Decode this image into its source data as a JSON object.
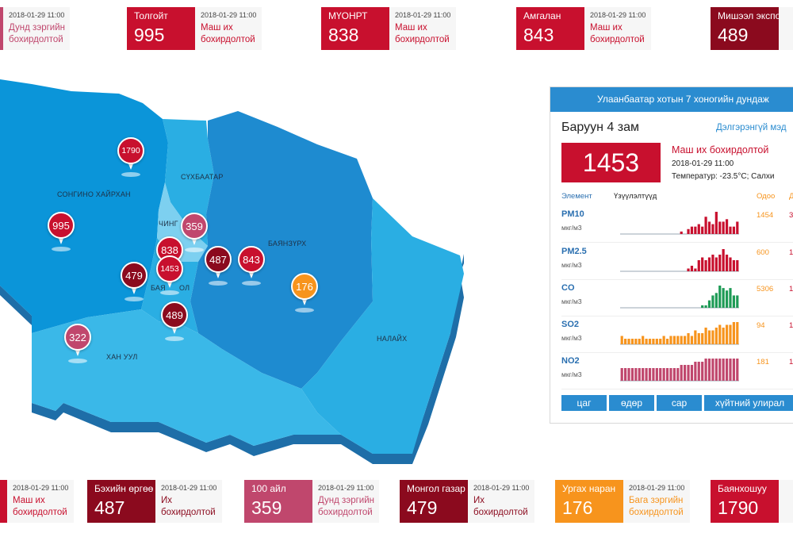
{
  "colors": {
    "very_high": "#c8102e",
    "dark": "#8b0a1e",
    "medium": "#c0476d",
    "low": "#f7941d",
    "map_dark": "#0b95d9",
    "map_mid": "#2aaee3",
    "map_light": "#7dd0f0",
    "map_side": "#1e6ea8",
    "accent": "#2a8cd0"
  },
  "top_cards": [
    {
      "name": "",
      "value": "",
      "timestamp": "2018-01-29 11:00",
      "status": "Дунд зэргийн бохирдолтой",
      "color": "#c0476d"
    },
    {
      "name": "Толгойт",
      "value": "995",
      "timestamp": "2018-01-29 11:00",
      "status": "Маш их бохирдолтой",
      "color": "#c8102e"
    },
    {
      "name": "МҮОНРТ",
      "value": "838",
      "timestamp": "2018-01-29 11:00",
      "status": "Маш их бохирдолтой",
      "color": "#c8102e"
    },
    {
      "name": "Амгалан",
      "value": "843",
      "timestamp": "2018-01-29 11:00",
      "status": "Маш их бохирдолтой",
      "color": "#c8102e"
    },
    {
      "name": "Мишээл экспо",
      "value": "489",
      "timestamp": "",
      "status": "",
      "color": "#8b0a1e"
    }
  ],
  "bottom_cards": [
    {
      "name": "",
      "value": "",
      "timestamp": "2018-01-29 11:00",
      "status": "Маш их бохирдолтой",
      "color": "#c8102e"
    },
    {
      "name": "Бэхийн өргөө",
      "value": "487",
      "timestamp": "2018-01-29 11:00",
      "status": "Их бохирдолтой",
      "color": "#8b0a1e"
    },
    {
      "name": "100 айл",
      "value": "359",
      "timestamp": "2018-01-29 11:00",
      "status": "Дунд зэргийн бохирдолтой",
      "color": "#c0476d"
    },
    {
      "name": "Монгол газар",
      "value": "479",
      "timestamp": "2018-01-29 11:00",
      "status": "Их бохирдолтой",
      "color": "#8b0a1e"
    },
    {
      "name": "Ургах наран",
      "value": "176",
      "timestamp": "2018-01-29 11:00",
      "status": "Бага зэргийн бохирдолтой",
      "color": "#f7941d"
    },
    {
      "name": "Баянхошуу",
      "value": "1790",
      "timestamp": "",
      "status": "",
      "color": "#c8102e"
    }
  ],
  "map": {
    "districts": [
      "СОНГИНО ХАЙРХАН",
      "СҮХБААТАР",
      "ЧИНГ",
      "БАЯНЗҮРХ",
      "БАЯ",
      "ОЛ",
      "ХАН УУЛ",
      "НАЛАЙХ"
    ],
    "markers": [
      {
        "value": "1790",
        "color": "#c8102e",
        "size": "small"
      },
      {
        "value": "995",
        "color": "#c8102e",
        "size": "normal"
      },
      {
        "value": "359",
        "color": "#c0476d",
        "size": "normal"
      },
      {
        "value": "838",
        "color": "#c8102e",
        "size": "normal"
      },
      {
        "value": "1453",
        "color": "#c8102e",
        "size": "small"
      },
      {
        "value": "479",
        "color": "#8b0a1e",
        "size": "normal"
      },
      {
        "value": "487",
        "color": "#8b0a1e",
        "size": "normal"
      },
      {
        "value": "843",
        "color": "#c8102e",
        "size": "normal"
      },
      {
        "value": "176",
        "color": "#f7941d",
        "size": "normal"
      },
      {
        "value": "489",
        "color": "#8b0a1e",
        "size": "normal"
      },
      {
        "value": "322",
        "color": "#c0476d",
        "size": "normal"
      }
    ]
  },
  "panel": {
    "title": "Улаанбаатар хотын 7 хоногийн дундаж",
    "station": "Баруун 4 зам",
    "details_link": "Дэлгэрэнгүй мэд",
    "value": "1453",
    "status": "Маш их бохирдолтой",
    "timestamp": "2018-01-29 11:00",
    "weather": "Температур: -23.5°C; Салхи",
    "col_element": "Элемент",
    "col_indicators": "Үзүүлэлтүүд",
    "col_now": "Одоо",
    "col_extra": "Д",
    "rows": [
      {
        "element": "PM10",
        "unit": "мкг/м3",
        "now": "1454",
        "extra": "3",
        "bar_color": "#c8102e",
        "bars": [
          0,
          0,
          0,
          0,
          0,
          0,
          0,
          0,
          0,
          0,
          0,
          0,
          0,
          0,
          0,
          0,
          0,
          1,
          0,
          2,
          3,
          3,
          4,
          3,
          7,
          5,
          4,
          9,
          5,
          5,
          6,
          3,
          3,
          5
        ]
      },
      {
        "element": "PM2.5",
        "unit": "мкг/м3",
        "now": "600",
        "extra": "1",
        "bar_color": "#c8102e",
        "bars": [
          0,
          0,
          0,
          0,
          0,
          0,
          0,
          0,
          0,
          0,
          0,
          0,
          0,
          0,
          0,
          0,
          0,
          0,
          0,
          1,
          2,
          1,
          4,
          5,
          4,
          5,
          6,
          5,
          6,
          8,
          6,
          5,
          4,
          4
        ]
      },
      {
        "element": "CO",
        "unit": "мкг/м3",
        "now": "5306",
        "extra": "1",
        "bar_color": "#1e9b56",
        "bars": [
          0,
          0,
          0,
          0,
          0,
          0,
          0,
          0,
          0,
          0,
          0,
          0,
          0,
          0,
          0,
          0,
          0,
          0,
          0,
          0,
          0,
          0,
          0,
          1,
          1,
          3,
          5,
          6,
          9,
          8,
          7,
          8,
          5,
          5
        ]
      },
      {
        "element": "SO2",
        "unit": "мкг/м3",
        "now": "94",
        "extra": "1",
        "bar_color": "#f7941d",
        "bars": [
          3,
          2,
          2,
          2,
          2,
          2,
          3,
          2,
          2,
          2,
          2,
          2,
          3,
          2,
          3,
          3,
          3,
          3,
          3,
          4,
          3,
          5,
          4,
          4,
          6,
          5,
          5,
          6,
          7,
          6,
          7,
          7,
          8,
          8
        ]
      },
      {
        "element": "NO2",
        "unit": "мкг/м3",
        "now": "181",
        "extra": "1",
        "bar_color": "#c0476d",
        "bars": [
          4,
          4,
          4,
          4,
          4,
          4,
          4,
          4,
          4,
          4,
          4,
          4,
          4,
          4,
          4,
          4,
          4,
          5,
          5,
          5,
          5,
          6,
          6,
          6,
          7,
          7,
          7,
          7,
          7,
          7,
          7,
          7,
          7,
          7
        ]
      }
    ],
    "tabs": [
      "цаг",
      "өдөр",
      "сар",
      "хүйтний улирал"
    ]
  }
}
